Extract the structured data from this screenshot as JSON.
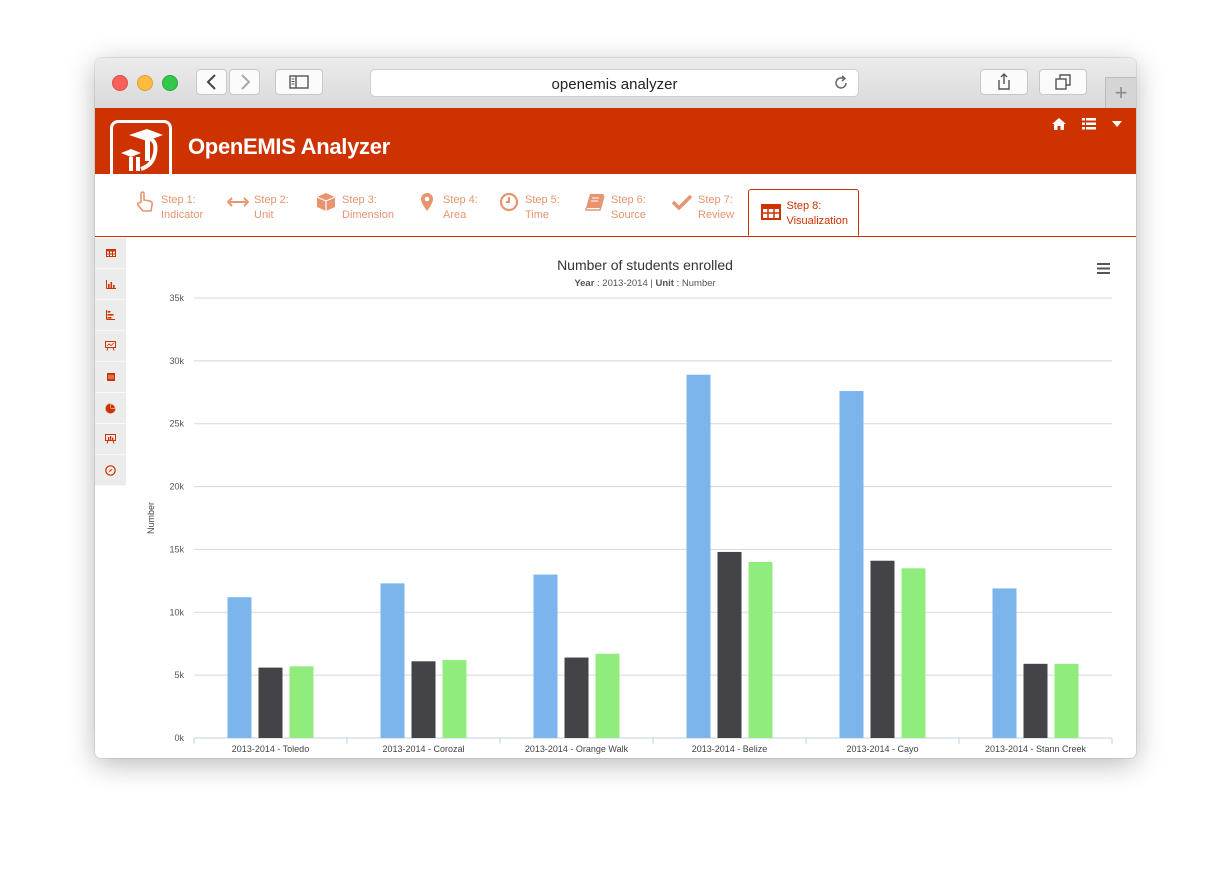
{
  "browser": {
    "url": "openemis analyzer"
  },
  "app": {
    "title": "OpenEMIS Analyzer",
    "brand_color": "#cd3200"
  },
  "steps": [
    {
      "step": "Step 1:",
      "label": "Indicator",
      "icon": "pointer-hand-icon",
      "active": false
    },
    {
      "step": "Step 2:",
      "label": "Unit",
      "icon": "horizontal-arrows-icon",
      "active": false
    },
    {
      "step": "Step 3:",
      "label": "Dimension",
      "icon": "cube-icon",
      "active": false
    },
    {
      "step": "Step 4:",
      "label": "Area",
      "icon": "map-pin-icon",
      "active": false
    },
    {
      "step": "Step 5:",
      "label": "Time",
      "icon": "clock-icon",
      "active": false
    },
    {
      "step": "Step 6:",
      "label": "Source",
      "icon": "book-icon",
      "active": false
    },
    {
      "step": "Step 7:",
      "label": "Review",
      "icon": "checkmark-icon",
      "active": false
    },
    {
      "step": "Step 8:",
      "label": "Visualization",
      "icon": "table-icon",
      "active": true
    }
  ],
  "sidebar": {
    "icons": [
      "table-icon",
      "column-chart-icon",
      "bar-chart-icon",
      "presentation-icon",
      "document-icon",
      "pie-chart-icon",
      "presentation-chart-icon",
      "compass-icon"
    ]
  },
  "chart_data": {
    "type": "bar",
    "title": "Number of students enrolled",
    "subtitle": {
      "year_label": "Year",
      "year_value": "2013-2014",
      "separator": "|",
      "unit_label": "Unit",
      "unit_value": "Number"
    },
    "ylabel": "Number",
    "xlabel": "",
    "ylim": [
      0,
      35000
    ],
    "yticks": [
      "0k",
      "5k",
      "10k",
      "15k",
      "20k",
      "25k",
      "30k",
      "35k"
    ],
    "grid": true,
    "categories": [
      "2013-2014 - Toledo",
      "2013-2014 - Corozal",
      "2013-2014 - Orange Walk",
      "2013-2014 - Belize",
      "2013-2014 - Cayo",
      "2013-2014 - Stann Creek"
    ],
    "series": [
      {
        "values": [
          11200,
          12300,
          13000,
          28900,
          27600,
          11900
        ],
        "color": "#7cb5ec"
      },
      {
        "values": [
          5600,
          6100,
          6400,
          14800,
          14100,
          5900
        ],
        "color": "#434348"
      },
      {
        "values": [
          5700,
          6200,
          6700,
          14000,
          13500,
          5900
        ],
        "color": "#90ed7d"
      }
    ]
  }
}
